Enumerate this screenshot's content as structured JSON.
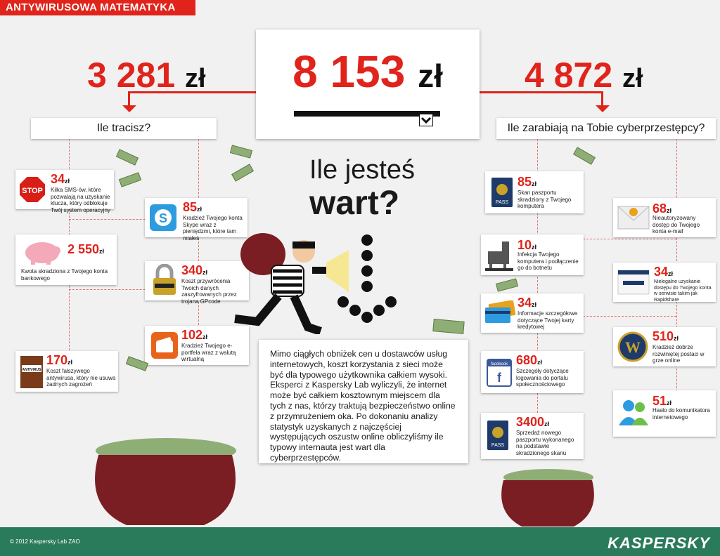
{
  "header": {
    "title": "ANTYWIRUSOWA MATEMATYKA"
  },
  "center": {
    "total": "8 153",
    "unit": "zł"
  },
  "left": {
    "total": "3 281",
    "unit": "zł",
    "label": "Ile tracisz?"
  },
  "right": {
    "total": "4 872",
    "unit": "zł",
    "label": "Ile zarabiają na Tobie cyberprzestępcy?"
  },
  "question": {
    "line1": "Ile jesteś",
    "line2": "wart?"
  },
  "description": "Mimo ciągłych obniżek cen u dostawców usług internetowych, koszt korzystania z sieci może być dla typowego użytkownika całkiem wysoki. Eksperci z Kaspersky Lab wyliczyli, że internet może być całkiem kosztownym miejscem dla tych z nas, którzy traktują bezpieczeństwo online z przymrużeniem oka. Po dokonaniu analizy statystyk uzyskanych z najczęściej występujących oszustw online obliczyliśmy ile typowy internauta jest wart dla cyberprzestępców.",
  "left_items": [
    {
      "value": "34",
      "unit": "zł",
      "text": "Kilka SMS-ów, które pozwalają na uzyskanie klucza, który odblokuje Twój system operacyjny",
      "icon": "stop-sign-icon",
      "icon_label": "STOP"
    },
    {
      "value": "85",
      "unit": "zł",
      "text": "Kradzież Twojego konta Skype wraz z pieniędzmi, które tam miałeś",
      "icon": "skype-icon"
    },
    {
      "value": "2 550",
      "unit": "zł",
      "text": "Kwota skradziona z Twojego konta bankowego",
      "icon": "piggy-bank-icon"
    },
    {
      "value": "340",
      "unit": "zł",
      "text": "Koszt przywrócenia Twoich danych zaszyfrowanych przez trojana GPcode",
      "icon": "padlock-icon"
    },
    {
      "value": "102",
      "unit": "zł",
      "text": "Kradzież Twojego e-portfela wraz z walutą wirtualną",
      "icon": "wallet-icon"
    },
    {
      "value": "170",
      "unit": "zł",
      "text": "Koszt fałszywego antywirusa, który nie usuwa żadnych zagrożeń",
      "icon": "fake-antivirus-box-icon",
      "icon_label": "ANTIVIRUS"
    }
  ],
  "right_items": [
    {
      "value": "85",
      "unit": "zł",
      "text": "Skan paszportu skradziony z Twojego komputera",
      "icon": "passport-icon",
      "icon_label": "PASS"
    },
    {
      "value": "68",
      "unit": "zł",
      "text": "Nieautoryzowany dostęp do Twojego konta e-mail",
      "icon": "email-envelope-icon"
    },
    {
      "value": "10",
      "unit": "zł",
      "text": "Infekcja Twojego komputera i podłączenie go do botnetu",
      "icon": "trojan-horse-icon"
    },
    {
      "value": "34",
      "unit": "zł",
      "text": "Nielegalne uzyskanie dostępu do Twojego konta w serwisie takim jak Rapidshare",
      "icon": "file-hosting-icon"
    },
    {
      "value": "34",
      "unit": "zł",
      "text": "Informacje szczegółowe dotyczące Twojej karty kredytowej",
      "icon": "credit-cards-icon"
    },
    {
      "value": "510",
      "unit": "zł",
      "text": "Kradzież dobrze rozwiniętej postaci w grze online",
      "icon": "wow-game-icon",
      "icon_label": "W"
    },
    {
      "value": "680",
      "unit": "zł",
      "text": "Szczegóły dotyczące logowania do portalu społecznościowego",
      "icon": "facebook-icon",
      "icon_label": "facebook"
    },
    {
      "value": "51",
      "unit": "zł",
      "text": "Hasło do komunikatora internetowego",
      "icon": "messenger-icon"
    },
    {
      "value": "3400",
      "unit": "zł",
      "text": "Sprzedaż nowego paszportu wykonanego na podstawie skradzionego skanu",
      "icon": "passport-icon",
      "icon_label": "PASS"
    }
  ],
  "footer": {
    "copyright": "© 2012 Kaspersky Lab ZAO",
    "logo": "KASPERSKY"
  },
  "colors": {
    "accent": "#e0231b",
    "footer": "#2a7a5c",
    "background": "#f1f1f1"
  }
}
